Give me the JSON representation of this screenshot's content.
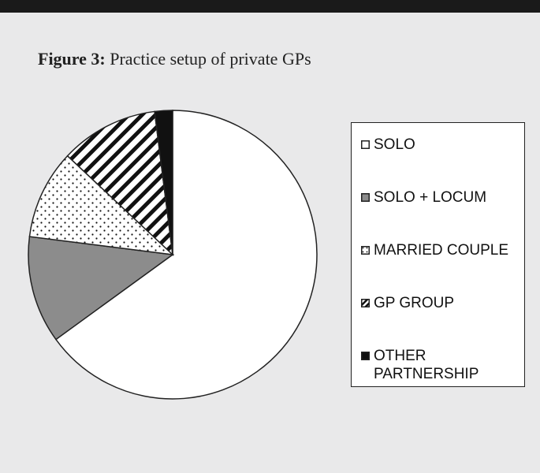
{
  "chart_data": {
    "type": "pie",
    "figure_label": "Figure 3:",
    "title": "Practice setup of private GPs",
    "categories": [
      "SOLO",
      "SOLO + LOCUM",
      "MARRIED COUPLE",
      "GP GROUP",
      "OTHER PARTNERSHIP"
    ],
    "values": [
      65,
      12,
      10,
      11,
      2
    ],
    "colors": [
      "#ffffff",
      "#8c8c8c",
      "#ffffff",
      "#ffffff",
      "#111111"
    ],
    "patterns": [
      "none",
      "none",
      "dots",
      "diagonal-stripes",
      "none"
    ],
    "legend": "right"
  }
}
